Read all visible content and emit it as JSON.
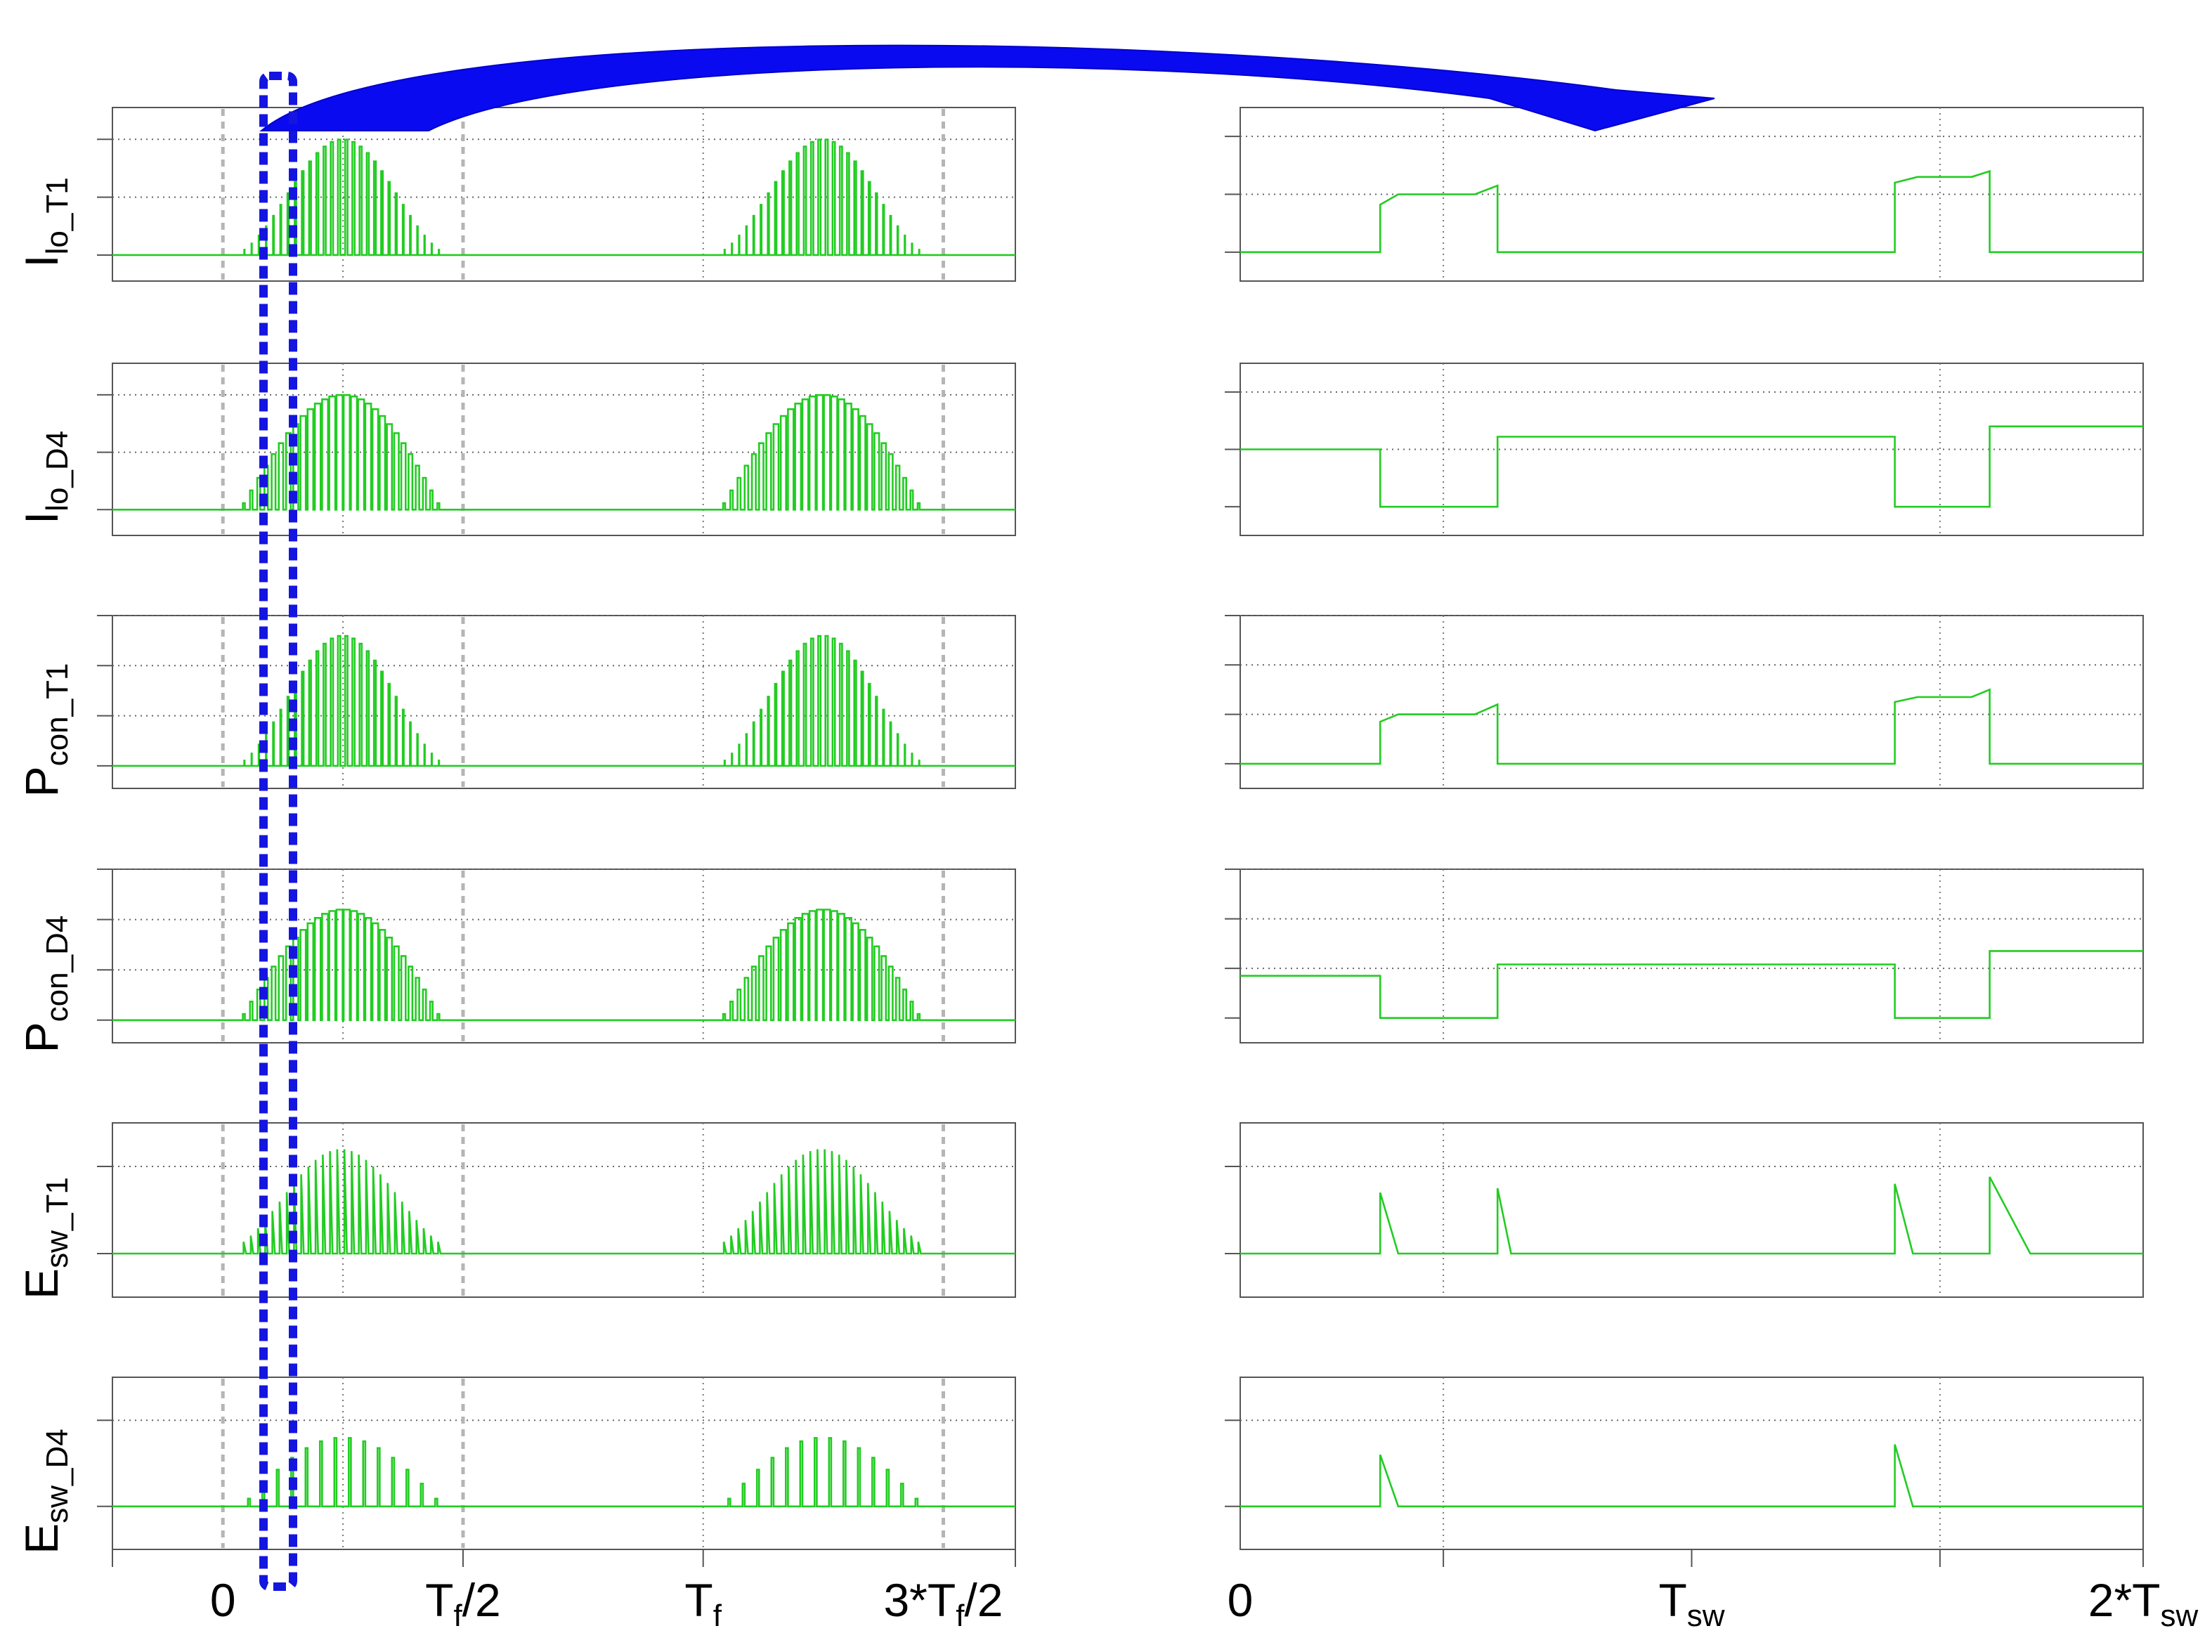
{
  "figure": {
    "colors": {
      "trace": "#22cc22",
      "marker": "#b5b5b5",
      "highlight": "#1515e0",
      "frame": "#555555"
    },
    "icons": [
      "zoom-arrow-icon",
      "highlight-window"
    ]
  },
  "left_x_axis": {
    "range": [
      -0.23,
      1.65
    ],
    "ticks": [
      {
        "value": 0,
        "label": "0",
        "sub": "",
        "suffix": ""
      },
      {
        "value": 0.5,
        "label": "T",
        "sub": "f",
        "suffix": "/2"
      },
      {
        "value": 1,
        "label": "T",
        "sub": "f",
        "suffix": ""
      },
      {
        "value": 1.5,
        "label": "3*T",
        "sub": "f",
        "suffix": "/2"
      }
    ]
  },
  "right_x_axis": {
    "range": [
      0,
      2
    ],
    "ticks": [
      {
        "value": 0,
        "label": "0",
        "sub": "",
        "suffix": ""
      },
      {
        "value": 1,
        "label": "T",
        "sub": "sw",
        "suffix": ""
      },
      {
        "value": 2,
        "label": "2*T",
        "sub": "sw",
        "suffix": ""
      }
    ]
  },
  "highlight": {
    "x_range": [
      0.1,
      0.16
    ],
    "description_units": "fundamental periods"
  },
  "chart_data": [
    {
      "type": "line",
      "panel": "left",
      "row": 0,
      "ylabel": {
        "main": "I",
        "sub": "lo_T1"
      },
      "ylim": [
        -0.45,
        2.55
      ],
      "y_grid": [
        1,
        2
      ],
      "markers": [
        0,
        0.5,
        1.5
      ],
      "signal": {
        "kind": "pwm_halfwave",
        "x_start": 0.04,
        "x_end": 0.46,
        "pulses": 28,
        "peak": 1.95,
        "duty_min": 0.12,
        "duty_max": 0.95
      }
    },
    {
      "type": "line",
      "panel": "left",
      "row": 1,
      "ylabel": {
        "main": "I",
        "sub": "lo_D4"
      },
      "ylim": [
        -0.45,
        2.55
      ],
      "y_grid": [
        1,
        2
      ],
      "markers": [
        0,
        0.5,
        1.5
      ],
      "signal": {
        "kind": "pwm_halfwave_complement",
        "x_start": 0.04,
        "x_end": 0.46,
        "pulses": 28,
        "peak": 2.0,
        "duty_min": 0.12,
        "duty_max": 0.95
      }
    },
    {
      "type": "line",
      "panel": "left",
      "row": 2,
      "ylabel": {
        "main": "P",
        "sub": "con_T1"
      },
      "ylim": [
        -0.45,
        3.0
      ],
      "y_grid": [
        1,
        2,
        3
      ],
      "markers": [
        0,
        0.5,
        1.5
      ],
      "signal": {
        "kind": "pwm_halfwave",
        "x_start": 0.04,
        "x_end": 0.46,
        "pulses": 28,
        "peak": 2.55,
        "duty_min": 0.12,
        "duty_max": 0.95
      }
    },
    {
      "type": "line",
      "panel": "left",
      "row": 3,
      "ylabel": {
        "main": "P",
        "sub": "con_D4"
      },
      "ylim": [
        -0.45,
        3.0
      ],
      "y_grid": [
        1,
        2,
        3
      ],
      "markers": [
        0,
        0.5,
        1.5
      ],
      "signal": {
        "kind": "pwm_halfwave_complement",
        "x_start": 0.04,
        "x_end": 0.46,
        "pulses": 28,
        "peak": 2.2,
        "duty_min": 0.12,
        "duty_max": 0.95
      }
    },
    {
      "type": "line",
      "panel": "left",
      "row": 4,
      "ylabel": {
        "main": "E",
        "sub": "sw_T1"
      },
      "ylim": [
        -0.5,
        1.5
      ],
      "y_grid": [
        1
      ],
      "markers": [
        0,
        0.5,
        1.5
      ],
      "signal": {
        "kind": "switching_spikes",
        "x_start": 0.04,
        "x_end": 0.46,
        "pulses": 28,
        "peak": 1.2
      }
    },
    {
      "type": "line",
      "panel": "left",
      "row": 5,
      "ylabel": {
        "main": "E",
        "sub": "sw_D4"
      },
      "ylim": [
        -0.5,
        1.5
      ],
      "y_grid": [
        1
      ],
      "markers": [
        0,
        0.5,
        1.5
      ],
      "signal": {
        "kind": "switching_spikes_sparse",
        "x_start": 0.04,
        "x_end": 0.46,
        "pulses": 14,
        "peak": 0.8
      }
    },
    {
      "type": "line",
      "panel": "right",
      "row": 0,
      "ylim": [
        -0.5,
        2.5
      ],
      "y_grid": [
        1,
        2
      ],
      "x_grid": [
        0.45,
        1.55
      ],
      "x": [
        0,
        0.31,
        0.31,
        0.35,
        0.52,
        0.57,
        0.57,
        1.45,
        1.45,
        1.5,
        1.62,
        1.66,
        1.66,
        2.0
      ],
      "y": [
        0,
        0,
        0.82,
        1.0,
        1.0,
        1.15,
        0,
        0,
        1.2,
        1.3,
        1.3,
        1.4,
        0,
        0
      ]
    },
    {
      "type": "line",
      "panel": "right",
      "row": 1,
      "ylim": [
        -0.5,
        2.5
      ],
      "y_grid": [
        1,
        2
      ],
      "x_grid": [
        0.45,
        1.55
      ],
      "x": [
        0,
        0.31,
        0.31,
        0.57,
        0.57,
        1.45,
        1.45,
        1.66,
        1.66,
        2.0
      ],
      "y": [
        1.0,
        1.0,
        0,
        0,
        1.22,
        1.22,
        0,
        0,
        1.4,
        1.4
      ]
    },
    {
      "type": "line",
      "panel": "right",
      "row": 2,
      "ylim": [
        -0.5,
        3.0
      ],
      "y_grid": [
        1,
        2,
        3
      ],
      "x_grid": [
        0.45,
        1.55
      ],
      "x": [
        0,
        0.31,
        0.31,
        0.35,
        0.52,
        0.57,
        0.57,
        1.45,
        1.45,
        1.5,
        1.62,
        1.66,
        1.66,
        2.0
      ],
      "y": [
        0,
        0,
        0.85,
        1.0,
        1.0,
        1.2,
        0,
        0,
        1.25,
        1.35,
        1.35,
        1.5,
        0,
        0
      ]
    },
    {
      "type": "line",
      "panel": "right",
      "row": 3,
      "ylim": [
        -0.5,
        3.0
      ],
      "y_grid": [
        1,
        2,
        3
      ],
      "x_grid": [
        0.45,
        1.55
      ],
      "x": [
        0,
        0.31,
        0.31,
        0.57,
        0.57,
        1.45,
        1.45,
        1.66,
        1.66,
        2.0
      ],
      "y": [
        0.85,
        0.85,
        0,
        0,
        1.08,
        1.08,
        0,
        0,
        1.35,
        1.35
      ]
    },
    {
      "type": "line",
      "panel": "right",
      "row": 4,
      "ylim": [
        -0.5,
        1.5
      ],
      "y_grid": [
        1
      ],
      "x_grid": [
        0.45,
        1.55
      ],
      "x": [
        0,
        0.31,
        0.31,
        0.35,
        0.57,
        0.57,
        0.6,
        1.45,
        1.45,
        1.49,
        1.66,
        1.66,
        1.75,
        2.0
      ],
      "y": [
        0,
        0,
        0.7,
        0,
        0,
        0.75,
        0,
        0,
        0.8,
        0,
        0,
        0.88,
        0,
        0
      ]
    },
    {
      "type": "line",
      "panel": "right",
      "row": 5,
      "ylim": [
        -0.5,
        1.5
      ],
      "y_grid": [
        1
      ],
      "x_grid": [
        0.45,
        1.55
      ],
      "x": [
        0,
        0.31,
        0.31,
        0.35,
        1.45,
        1.45,
        1.49,
        2.0
      ],
      "y": [
        0,
        0,
        0.6,
        0,
        0,
        0.72,
        0,
        0
      ]
    }
  ]
}
